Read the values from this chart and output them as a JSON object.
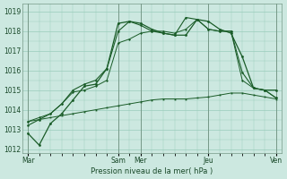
{
  "xlabel": "Pression niveau de la mer( hPa )",
  "ylim": [
    1011.8,
    1019.4
  ],
  "yticks": [
    1012,
    1013,
    1014,
    1015,
    1016,
    1017,
    1018,
    1019
  ],
  "bg_color": "#cce8e0",
  "grid_color": "#99ccbb",
  "line_color_dark": "#1a5c28",
  "line_color_mid": "#2a7a3a",
  "line_color_light": "#3a9a4a",
  "day_labels": [
    "Mar",
    "Sam",
    "Mer",
    "Jeu",
    "Ven"
  ],
  "day_positions": [
    1,
    9,
    11,
    17,
    23
  ],
  "vline_positions": [
    1,
    9,
    11,
    17,
    23
  ],
  "series1_x": [
    1,
    2,
    3,
    4,
    5,
    6,
    7,
    8,
    9,
    10,
    11,
    12,
    13,
    14,
    15,
    16,
    17,
    18,
    19,
    20,
    21,
    22,
    23
  ],
  "series1_y": [
    1012.8,
    1012.2,
    1013.3,
    1013.8,
    1014.5,
    1015.2,
    1015.3,
    1016.1,
    1018.4,
    1018.5,
    1018.4,
    1018.1,
    1017.9,
    1017.8,
    1017.8,
    1018.6,
    1018.5,
    1018.1,
    1017.9,
    1016.7,
    1015.1,
    1015.0,
    1015.0
  ],
  "series2_x": [
    1,
    2,
    3,
    4,
    5,
    6,
    7,
    8,
    9,
    10,
    11,
    12,
    13,
    14,
    15,
    16,
    17,
    18,
    19,
    20,
    21,
    22,
    23
  ],
  "series2_y": [
    1013.2,
    1013.5,
    1013.8,
    1014.3,
    1015.0,
    1015.3,
    1015.5,
    1016.1,
    1018.0,
    1018.5,
    1018.3,
    1018.0,
    1017.9,
    1017.8,
    1018.7,
    1018.6,
    1018.1,
    1018.0,
    1018.0,
    1015.9,
    1015.1,
    1015.0,
    1014.6
  ],
  "series3_x": [
    1,
    2,
    3,
    4,
    5,
    6,
    7,
    8,
    9,
    10,
    11,
    12,
    13,
    14,
    15,
    16,
    17,
    18,
    19,
    20,
    21,
    22,
    23
  ],
  "series3_y": [
    1013.4,
    1013.6,
    1013.8,
    1014.3,
    1014.9,
    1015.0,
    1015.2,
    1015.5,
    1017.4,
    1017.6,
    1017.9,
    1018.0,
    1018.0,
    1017.9,
    1018.1,
    1018.6,
    1018.1,
    1018.0,
    1018.0,
    1015.5,
    1015.1,
    1015.0,
    1014.6
  ],
  "series4_x": [
    1,
    2,
    3,
    4,
    5,
    6,
    7,
    8,
    9,
    10,
    11,
    12,
    13,
    14,
    15,
    16,
    17,
    18,
    19,
    20,
    21,
    22,
    23
  ],
  "series4_y": [
    1013.4,
    1013.5,
    1013.6,
    1013.7,
    1013.8,
    1013.9,
    1014.0,
    1014.1,
    1014.2,
    1014.3,
    1014.4,
    1014.5,
    1014.55,
    1014.55,
    1014.55,
    1014.6,
    1014.65,
    1014.75,
    1014.85,
    1014.85,
    1014.75,
    1014.65,
    1014.55
  ]
}
